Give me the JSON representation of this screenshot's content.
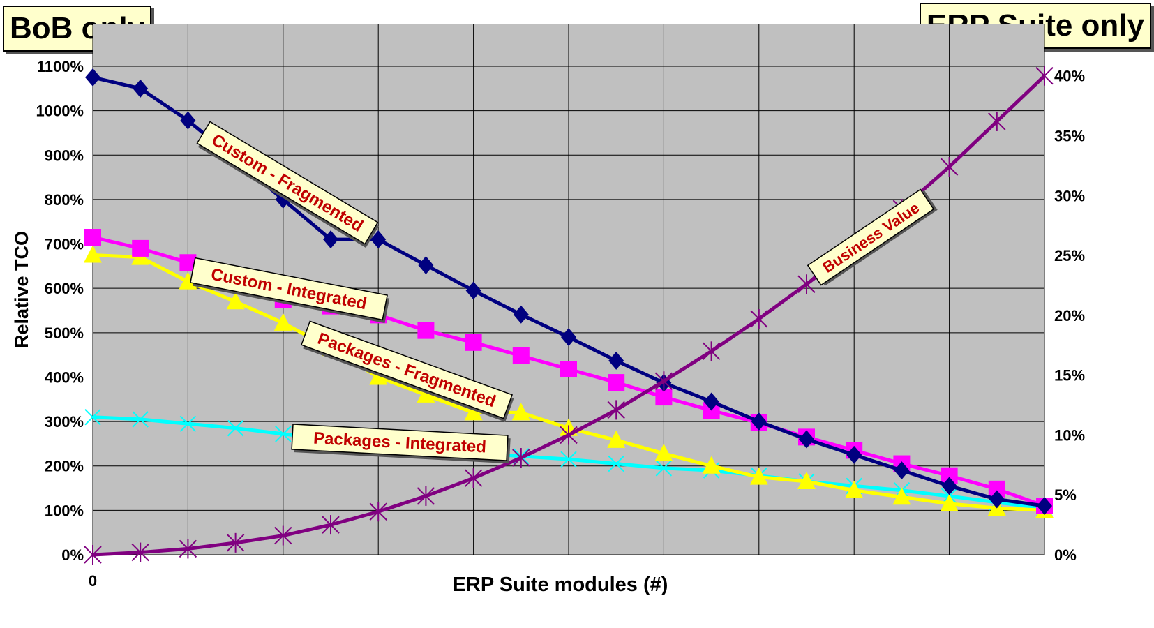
{
  "chart_data": {
    "type": "line",
    "xlabel": "ERP Suite modules (#)",
    "ylabel": "Relative TCO",
    "x_tick_labels": [
      "0"
    ],
    "left_axis": {
      "range": [
        0,
        1100
      ],
      "ticks": [
        "0%",
        "100%",
        "200%",
        "300%",
        "400%",
        "500%",
        "600%",
        "700%",
        "800%",
        "900%",
        "1000%",
        "1100%"
      ]
    },
    "right_axis": {
      "range": [
        0,
        41.5
      ],
      "ticks": [
        "0%",
        "5%",
        "10%",
        "15%",
        "20%",
        "25%",
        "30%",
        "35%",
        "40%"
      ]
    },
    "corner_labels": {
      "left": "BoB only",
      "right": "ERP Suite only"
    },
    "grid": true,
    "x": [
      0,
      1,
      2,
      3,
      4,
      5,
      6,
      7,
      8,
      9,
      10,
      11,
      12,
      13,
      14,
      15,
      16,
      17,
      18,
      19,
      20
    ],
    "series": [
      {
        "name": "Custom - Fragmented",
        "axis": "left",
        "color": "#000080",
        "marker": "diamond",
        "values": [
          1075,
          1050,
          978,
          890,
          800,
          710,
          710,
          652,
          595,
          541,
          490,
          437,
          387,
          345,
          300,
          260,
          225,
          190,
          155,
          125,
          110
        ]
      },
      {
        "name": "Custom - Integrated",
        "axis": "left",
        "color": "#ff00ff",
        "marker": "square",
        "values": [
          715,
          690,
          658,
          615,
          575,
          560,
          540,
          505,
          478,
          448,
          418,
          388,
          355,
          325,
          297,
          265,
          235,
          205,
          178,
          148,
          110
        ]
      },
      {
        "name": "Packages - Fragmented",
        "axis": "left",
        "color": "#ffff00",
        "marker": "triangle",
        "values": [
          675,
          670,
          615,
          570,
          522,
          465,
          400,
          360,
          320,
          320,
          285,
          258,
          228,
          200,
          175,
          165,
          145,
          130,
          115,
          105,
          100
        ]
      },
      {
        "name": "Packages - Integrated",
        "axis": "left",
        "color": "#00ffff",
        "marker": "x",
        "values": [
          310,
          305,
          295,
          285,
          272,
          260,
          250,
          240,
          230,
          222,
          215,
          205,
          195,
          190,
          178,
          165,
          155,
          145,
          132,
          118,
          105
        ]
      },
      {
        "name": "Business Value",
        "axis": "right",
        "color": "#800080",
        "marker": "asterisk",
        "values": [
          0,
          0.2,
          0.5,
          1.0,
          1.6,
          2.5,
          3.6,
          4.9,
          6.4,
          8.1,
          10.0,
          12.1,
          14.5,
          17.0,
          19.7,
          22.6,
          25.6,
          28.9,
          32.4,
          36.2,
          40.0
        ]
      }
    ]
  }
}
